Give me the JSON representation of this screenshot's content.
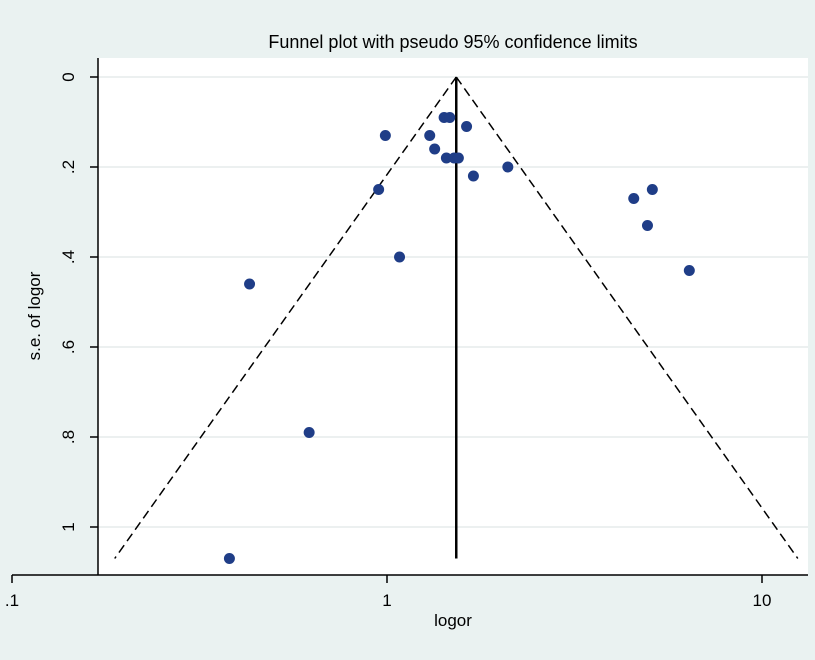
{
  "chart_data": {
    "type": "scatter",
    "title": "Funnel plot with pseudo 95% confidence limits",
    "xlabel": "logor",
    "ylabel": "s.e. of logor",
    "x_scale": "log",
    "y_reversed": true,
    "xlim": [
      0.1,
      13
    ],
    "ylim": [
      0,
      1.07
    ],
    "x_ticks": [
      {
        "value": 0.1,
        "label": ".1"
      },
      {
        "value": 1,
        "label": "1"
      },
      {
        "value": 10,
        "label": "10"
      }
    ],
    "y_ticks": [
      {
        "value": 0,
        "label": "0"
      },
      {
        "value": 0.2,
        "label": ".2"
      },
      {
        "value": 0.4,
        "label": ".4"
      },
      {
        "value": 0.6,
        "label": ".6"
      },
      {
        "value": 0.8,
        "label": ".8"
      },
      {
        "value": 1,
        "label": "1"
      }
    ],
    "grid": "horizontal",
    "pooled_estimate": 1.53,
    "confidence_limits": {
      "se_max": 1.07
    },
    "points": [
      {
        "x": 0.38,
        "y": 1.07
      },
      {
        "x": 0.43,
        "y": 0.46
      },
      {
        "x": 0.62,
        "y": 0.79
      },
      {
        "x": 0.95,
        "y": 0.25
      },
      {
        "x": 0.99,
        "y": 0.13
      },
      {
        "x": 1.08,
        "y": 0.4
      },
      {
        "x": 1.3,
        "y": 0.13
      },
      {
        "x": 1.34,
        "y": 0.16
      },
      {
        "x": 1.42,
        "y": 0.09
      },
      {
        "x": 1.44,
        "y": 0.18
      },
      {
        "x": 1.47,
        "y": 0.09
      },
      {
        "x": 1.51,
        "y": 0.18
      },
      {
        "x": 1.55,
        "y": 0.18
      },
      {
        "x": 1.63,
        "y": 0.11
      },
      {
        "x": 1.7,
        "y": 0.22
      },
      {
        "x": 2.1,
        "y": 0.2
      },
      {
        "x": 4.55,
        "y": 0.27
      },
      {
        "x": 4.95,
        "y": 0.33
      },
      {
        "x": 5.1,
        "y": 0.25
      },
      {
        "x": 6.4,
        "y": 0.43
      }
    ],
    "colors": {
      "marker": "#1f3d87",
      "background": "#eaf2f1",
      "plot_background": "#ffffff",
      "grid": "#e6ecec",
      "line": "#000000"
    }
  }
}
